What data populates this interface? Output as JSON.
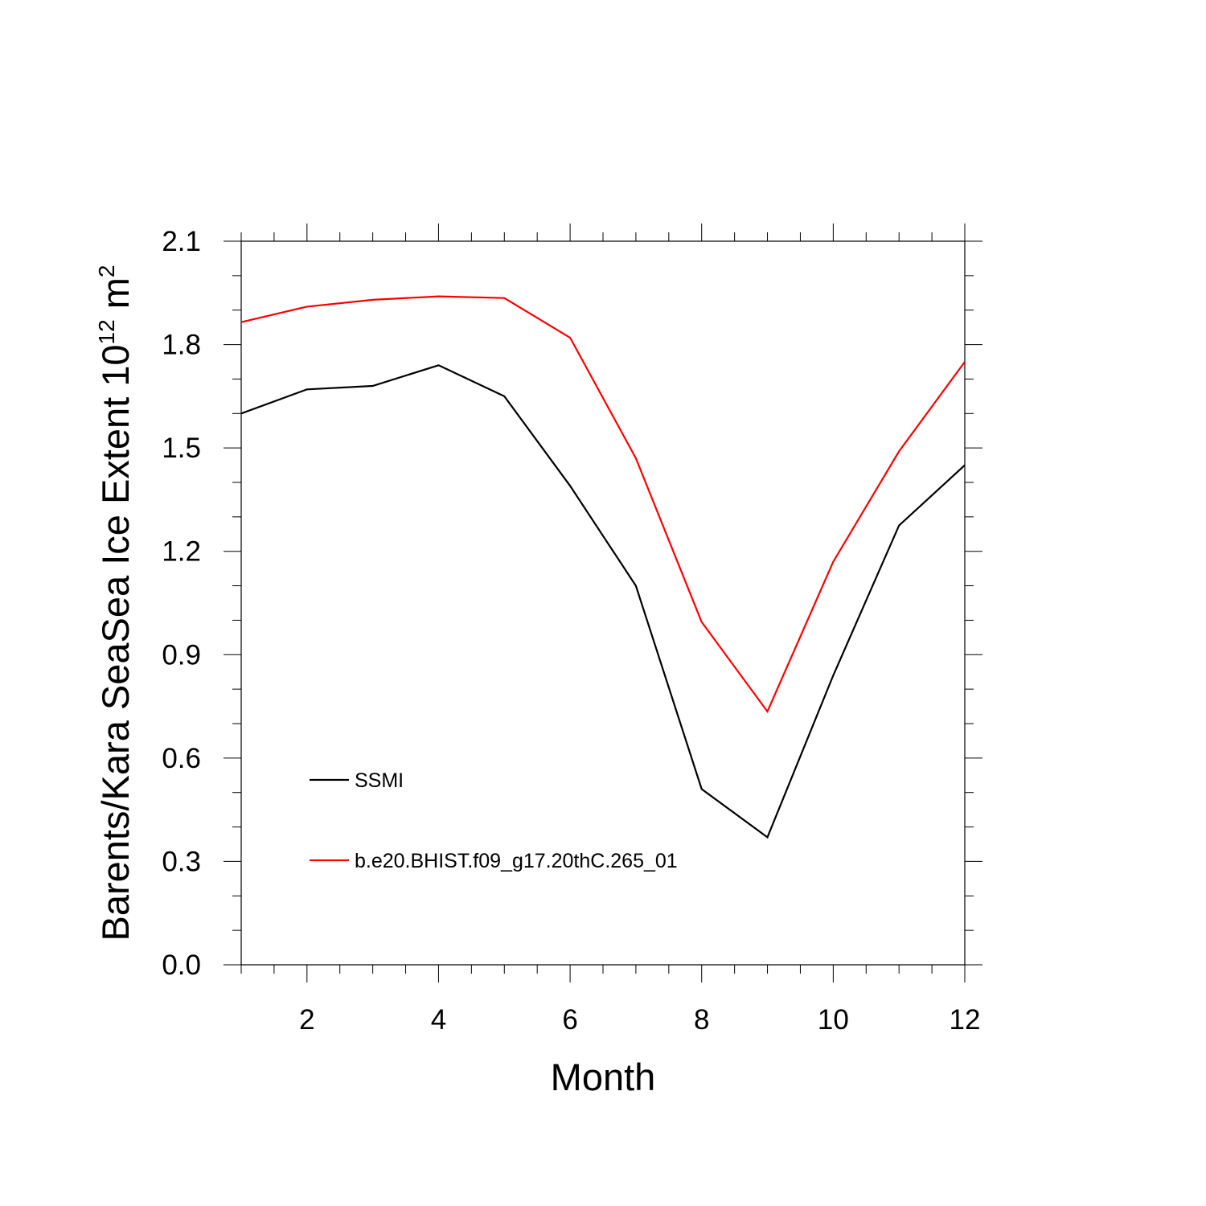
{
  "chart_data": {
    "type": "line",
    "title": "",
    "xlabel": "Month",
    "ylabel": {
      "base": "Barents/Kara SeaSea Ice Extent 10",
      "exponent": "12",
      "unit": " m",
      "unit_exponent": "2"
    },
    "xlim": [
      1,
      12
    ],
    "ylim": [
      0,
      2.1
    ],
    "x_ticks": [
      2,
      4,
      6,
      8,
      10,
      12
    ],
    "y_ticks": [
      0.0,
      0.3,
      0.6,
      0.9,
      1.2,
      1.5,
      1.8,
      2.1
    ],
    "y_tick_labels": [
      "0.0",
      "0.3",
      "0.6",
      "0.9",
      "1.2",
      "1.5",
      "1.8",
      "2.1"
    ],
    "x_tick_labels": [
      "2",
      "4",
      "6",
      "8",
      "10",
      "12"
    ],
    "grid": false,
    "legend_position": "lower-left",
    "x": [
      1,
      2,
      3,
      4,
      5,
      6,
      7,
      8,
      9,
      10,
      11,
      12
    ],
    "series": [
      {
        "name": "SSMI",
        "color": "#000000",
        "values": [
          1.6,
          1.67,
          1.68,
          1.74,
          1.65,
          1.39,
          1.1,
          0.51,
          0.37,
          0.84,
          1.275,
          1.45
        ]
      },
      {
        "name": "b.e20.BHIST.f09_g17.20thC.265_01",
        "color": "#ff0000",
        "values": [
          1.865,
          1.91,
          1.93,
          1.94,
          1.935,
          1.82,
          1.47,
          0.995,
          0.735,
          1.17,
          1.49,
          1.75
        ]
      }
    ]
  }
}
